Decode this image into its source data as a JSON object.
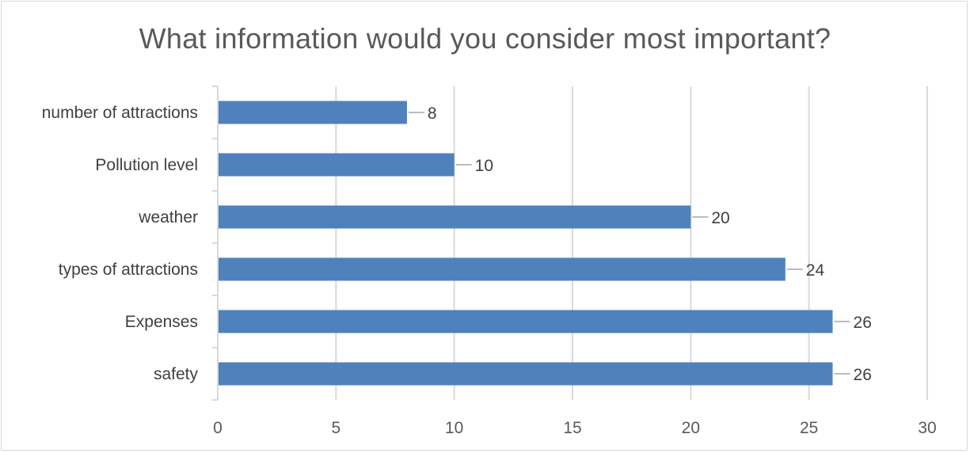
{
  "chart_data": {
    "type": "bar",
    "orientation": "horizontal",
    "title": "What information would you consider most important?",
    "categories": [
      "number of attractions",
      "Pollution level",
      "weather",
      "types of attractions",
      "Expenses",
      "safety"
    ],
    "values": [
      8,
      10,
      20,
      24,
      26,
      26
    ],
    "data_labels": [
      "8",
      "10",
      "20",
      "24",
      "26",
      "26"
    ],
    "xlim": [
      0,
      30
    ],
    "x_ticks": [
      0,
      5,
      10,
      15,
      20,
      25,
      30
    ],
    "x_tick_labels": [
      "0",
      "5",
      "10",
      "15",
      "20",
      "25",
      "30"
    ],
    "grid": true,
    "legend": "none",
    "bar_color": "#4f81bd",
    "grid_color": "#d9d9d9"
  }
}
